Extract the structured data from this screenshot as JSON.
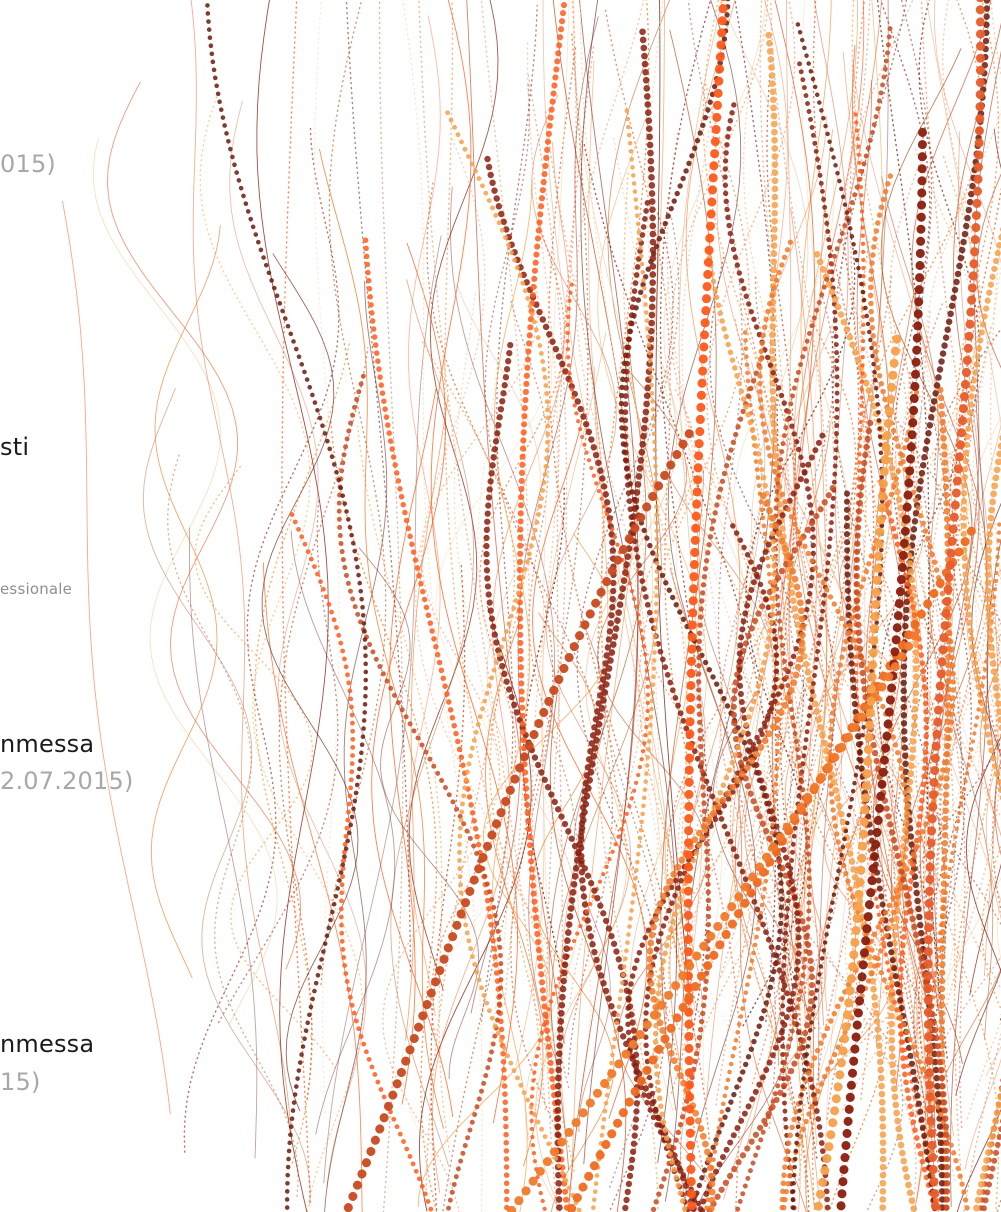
{
  "texts": {
    "line1_gray": "015)",
    "line2_dark": "sti",
    "line3_small": "essionale",
    "line4_dark": "nmessa",
    "line5_gray": "2.07.2015)",
    "line6_dark": "nmessa",
    "line7_gray": "15)"
  },
  "colors": {
    "dark_text": "#1b1b1b",
    "gray_text": "#a8a8a8",
    "palette": [
      "#ff5a1a",
      "#f07a2a",
      "#f5a04a",
      "#c84a20",
      "#8a1e0e",
      "#6a1a0c",
      "#e9a070",
      "#f3d8b0",
      "#e85c2a",
      "#b8602e"
    ]
  }
}
